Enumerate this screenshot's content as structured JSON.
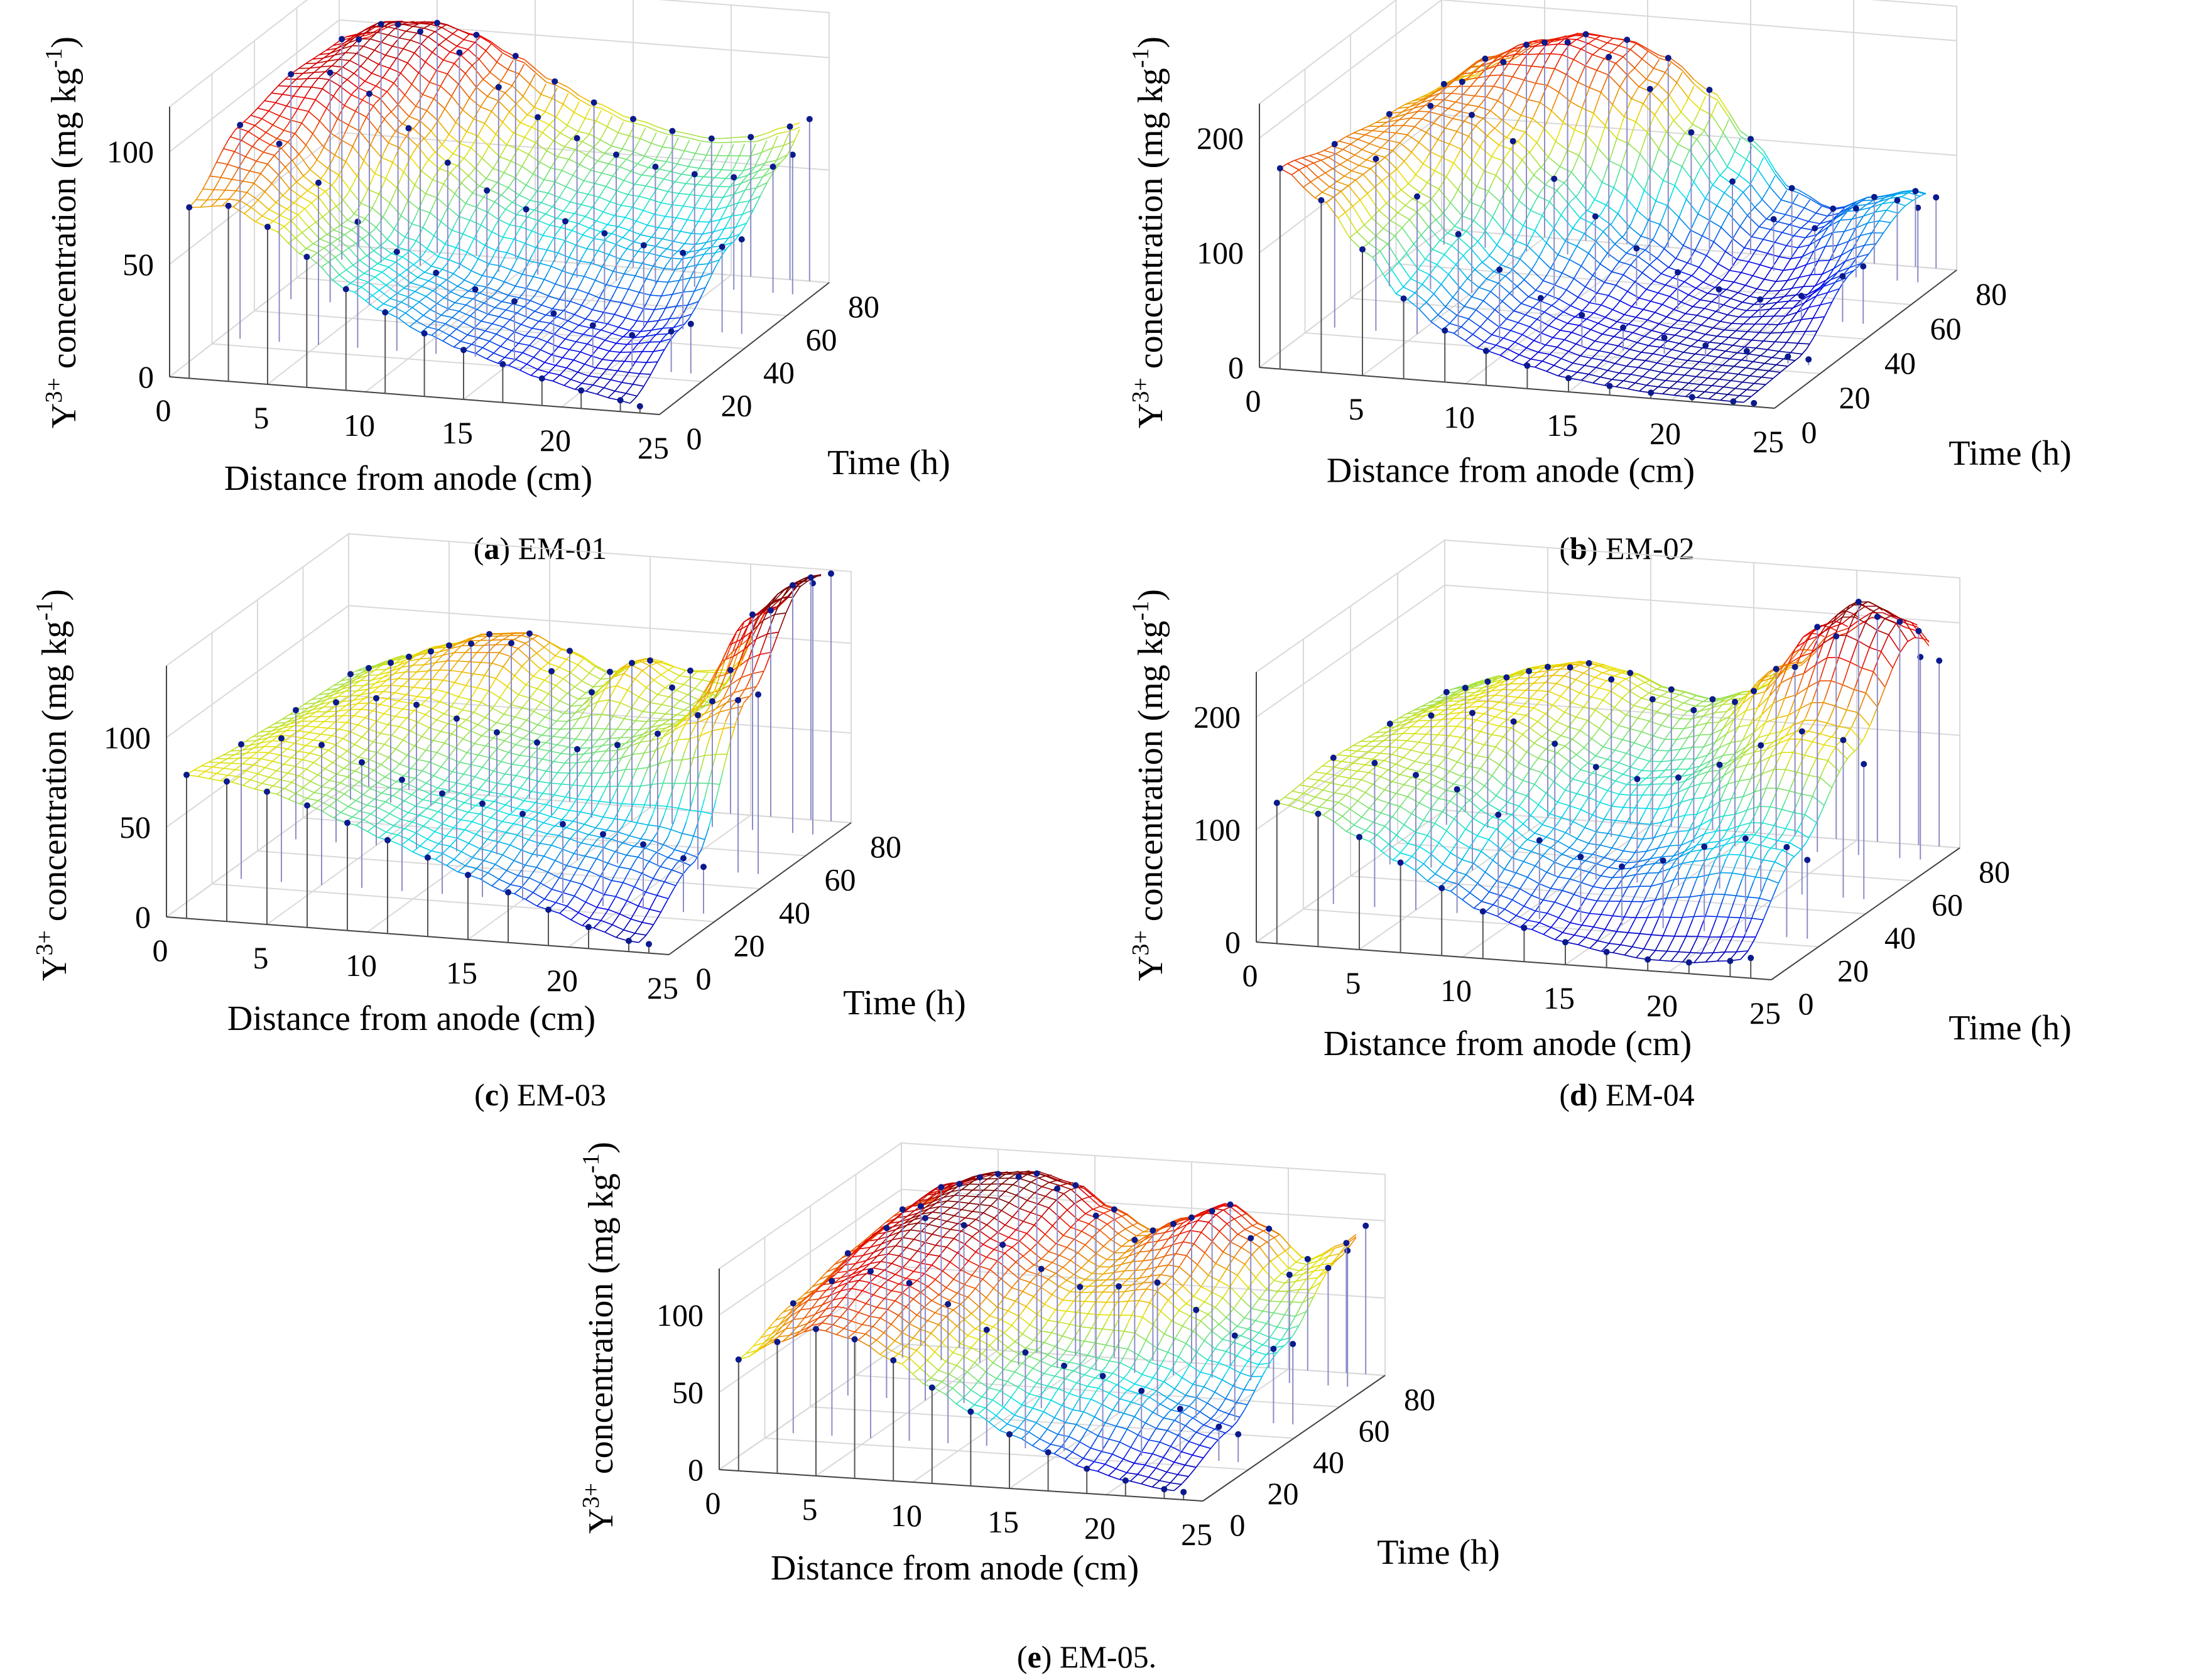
{
  "chart_data": [
    {
      "type": "surface3d",
      "panel": "a",
      "name": "EM-01",
      "caption": {
        "letter": "a",
        "text": " EM-01"
      },
      "zlabel_main": "Y",
      "zlabel_sup": "3+",
      "zlabel_rest": " concentration (mg kg",
      "zlabel_exp": "-1",
      "zlabel_end": ")",
      "xlabel": "Distance from anode (cm)",
      "ylabel": "Time (h)",
      "xticks": [
        "0",
        "5",
        "10",
        "15",
        "20",
        "25"
      ],
      "yticks": [
        "0",
        "20",
        "40",
        "60",
        "80"
      ],
      "zticks": [
        "0",
        "50",
        "100"
      ],
      "xlim": [
        0,
        25
      ],
      "ylim": [
        0,
        80
      ],
      "zlim": [
        0,
        120
      ],
      "x_points": [
        1,
        3,
        5,
        7,
        9,
        11,
        13,
        15,
        17,
        19,
        21,
        23,
        24
      ],
      "times": [
        0,
        24,
        48,
        72,
        84
      ],
      "z": [
        [
          76,
          78,
          70,
          58,
          45,
          36,
          28,
          22,
          17,
          12,
          8,
          5,
          3
        ],
        [
          95,
          88,
          72,
          56,
          44,
          36,
          30,
          26,
          22,
          18,
          15,
          18,
          22
        ],
        [
          100,
          102,
          94,
          80,
          66,
          55,
          48,
          44,
          40,
          36,
          34,
          38,
          42
        ],
        [
          98,
          106,
          104,
          96,
          82,
          70,
          62,
          56,
          52,
          50,
          50,
          56,
          62
        ],
        [
          92,
          100,
          102,
          98,
          90,
          80,
          72,
          66,
          62,
          60,
          62,
          68,
          72
        ]
      ]
    },
    {
      "type": "surface3d",
      "panel": "b",
      "name": "EM-02",
      "caption": {
        "letter": "b",
        "text": " EM-02"
      },
      "zlabel_main": "Y",
      "zlabel_sup": "3+",
      "zlabel_rest": " concentration (mg kg",
      "zlabel_exp": "-1",
      "zlabel_end": ")",
      "xlabel": "Distance from anode (cm)",
      "ylabel": "Time (h)",
      "xticks": [
        "0",
        "5",
        "10",
        "15",
        "20",
        "25"
      ],
      "yticks": [
        "0",
        "20",
        "40",
        "60",
        "80"
      ],
      "zticks": [
        "0",
        "100",
        "200"
      ],
      "xlim": [
        0,
        25
      ],
      "ylim": [
        0,
        80
      ],
      "zlim": [
        0,
        230
      ],
      "x_points": [
        1,
        3,
        5,
        7,
        9,
        11,
        13,
        15,
        17,
        19,
        21,
        23,
        24
      ],
      "times": [
        0,
        24,
        48,
        72,
        84
      ],
      "z": [
        [
          175,
          150,
          110,
          70,
          45,
          30,
          20,
          12,
          8,
          5,
          4,
          3,
          3
        ],
        [
          160,
          150,
          120,
          90,
          62,
          40,
          28,
          20,
          14,
          10,
          8,
          6,
          5
        ],
        [
          150,
          160,
          155,
          135,
          105,
          75,
          50,
          32,
          20,
          14,
          20,
          40,
          50
        ],
        [
          140,
          165,
          180,
          185,
          175,
          150,
          115,
          75,
          45,
          40,
          60,
          70,
          65
        ],
        [
          130,
          150,
          170,
          180,
          178,
          165,
          140,
          100,
          60,
          45,
          58,
          66,
          62
        ]
      ]
    },
    {
      "type": "surface3d",
      "panel": "c",
      "name": "EM-03",
      "caption": {
        "letter": "c",
        "text": " EM-03"
      },
      "zlabel_main": "Y",
      "zlabel_sup": "3+",
      "zlabel_rest": " concentration (mg kg",
      "zlabel_exp": "-1",
      "zlabel_end": ")",
      "xlabel": "Distance from anode (cm)",
      "ylabel": "Time (h)",
      "xticks": [
        "0",
        "5",
        "10",
        "15",
        "20",
        "25"
      ],
      "yticks": [
        "0",
        "20",
        "40",
        "60",
        "80"
      ],
      "zticks": [
        "0",
        "50",
        "100"
      ],
      "xlim": [
        0,
        25
      ],
      "ylim": [
        0,
        80
      ],
      "zlim": [
        0,
        140
      ],
      "x_points": [
        1,
        3,
        5,
        7,
        9,
        11,
        13,
        15,
        17,
        19,
        21,
        23,
        24
      ],
      "times": [
        0,
        24,
        48,
        72,
        84
      ],
      "z": [
        [
          80,
          78,
          74,
          68,
          60,
          52,
          44,
          36,
          28,
          20,
          12,
          6,
          5
        ],
        [
          75,
          80,
          78,
          70,
          62,
          56,
          52,
          48,
          44,
          40,
          36,
          30,
          26
        ],
        [
          72,
          78,
          82,
          80,
          74,
          68,
          64,
          62,
          66,
          74,
          86,
          96,
          100
        ],
        [
          70,
          78,
          86,
          92,
          94,
          80,
          70,
          88,
          76,
          70,
          120,
          138,
          140
        ],
        [
          66,
          74,
          82,
          90,
          92,
          84,
          74,
          82,
          78,
          80,
          115,
          135,
          138
        ]
      ]
    },
    {
      "type": "surface3d",
      "panel": "d",
      "name": "EM-04",
      "caption": {
        "letter": "d",
        "text": " EM-04"
      },
      "zlabel_main": "Y",
      "zlabel_sup": "3+",
      "zlabel_rest": " concentration (mg kg",
      "zlabel_exp": "-1",
      "zlabel_end": ")",
      "xlabel": "Distance from anode (cm)",
      "ylabel": "Time (h)",
      "xticks": [
        "0",
        "5",
        "10",
        "15",
        "20",
        "25"
      ],
      "yticks": [
        "0",
        "20",
        "40",
        "60",
        "80"
      ],
      "zticks": [
        "0",
        "100",
        "200"
      ],
      "xlim": [
        0,
        25
      ],
      "ylim": [
        0,
        80
      ],
      "zlim": [
        0,
        240
      ],
      "x_points": [
        1,
        3,
        5,
        7,
        9,
        11,
        13,
        15,
        17,
        19,
        21,
        23,
        24
      ],
      "times": [
        0,
        24,
        48,
        72,
        84
      ],
      "z": [
        [
          125,
          118,
          100,
          80,
          60,
          42,
          30,
          20,
          14,
          10,
          10,
          14,
          18
        ],
        [
          130,
          128,
          120,
          110,
          90,
          70,
          58,
          52,
          60,
          75,
          85,
          80,
          70
        ],
        [
          125,
          135,
          140,
          135,
          118,
          100,
          92,
          96,
          110,
          130,
          145,
          140,
          120
        ],
        [
          118,
          130,
          142,
          148,
          140,
          125,
          118,
          128,
          160,
          200,
          225,
          210,
          180
        ],
        [
          110,
          122,
          134,
          140,
          134,
          122,
          116,
          126,
          150,
          180,
          200,
          190,
          165
        ]
      ]
    },
    {
      "type": "surface3d",
      "panel": "e",
      "name": "EM-05",
      "caption": {
        "letter": "e",
        "text": " EM-05."
      },
      "zlabel_main": "Y",
      "zlabel_sup": "3+",
      "zlabel_rest": " concentration (mg kg",
      "zlabel_exp": "-1",
      "zlabel_end": ")",
      "xlabel": "Distance from anode (cm)",
      "ylabel": "Time (h)",
      "xticks": [
        "0",
        "5",
        "10",
        "15",
        "20",
        "25"
      ],
      "yticks": [
        "0",
        "20",
        "40",
        "60",
        "80"
      ],
      "zticks": [
        "0",
        "50",
        "100"
      ],
      "xlim": [
        0,
        25
      ],
      "ylim": [
        0,
        80
      ],
      "zlim": [
        0,
        130
      ],
      "x_points": [
        1,
        3,
        5,
        7,
        9,
        11,
        13,
        15,
        17,
        19,
        21,
        23,
        24
      ],
      "times": [
        0,
        24,
        48,
        72,
        84
      ],
      "z": [
        [
          72,
          85,
          95,
          90,
          78,
          62,
          48,
          35,
          25,
          16,
          10,
          6,
          5
        ],
        [
          84,
          100,
          108,
          102,
          90,
          75,
          62,
          55,
          50,
          42,
          32,
          22,
          18
        ],
        [
          92,
          110,
          118,
          115,
          104,
          90,
          80,
          82,
          86,
          70,
          55,
          48,
          52
        ],
        [
          96,
          112,
          120,
          122,
          116,
          100,
          86,
          98,
          108,
          92,
          70,
          76,
          88
        ],
        [
          90,
          106,
          114,
          116,
          110,
          96,
          84,
          94,
          104,
          90,
          72,
          84,
          96
        ]
      ]
    }
  ]
}
